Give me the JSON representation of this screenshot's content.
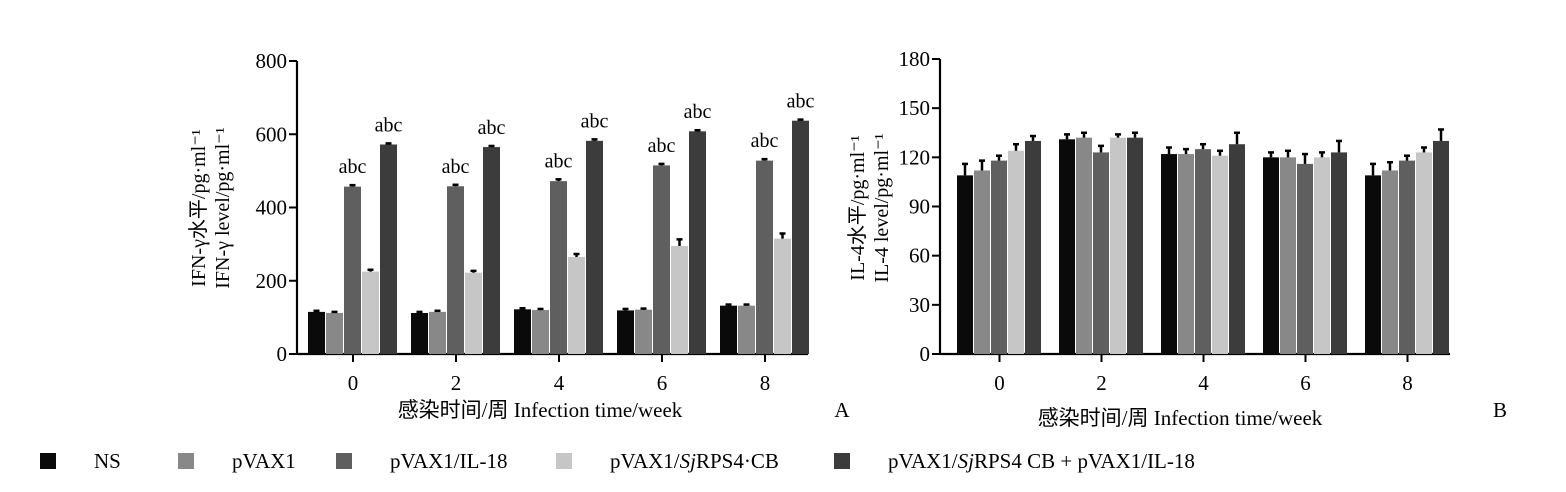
{
  "chart_data": [
    {
      "id": "A",
      "type": "bar",
      "panel_label": "A",
      "title": "",
      "ylabel_line1": "IFN-γ水平/pg·ml⁻¹",
      "ylabel_line2": "IFN-γ level/pg·ml⁻¹",
      "xlabel": "感染时间/周  Infection  time/week",
      "categories": [
        "0",
        "2",
        "4",
        "6",
        "8"
      ],
      "ylim": [
        0,
        800
      ],
      "yticks": [
        "0",
        "200",
        "400",
        "600",
        "800"
      ],
      "grid": false,
      "series": [
        {
          "values": [
            115,
            112,
            122,
            119,
            132
          ],
          "errors": [
            3,
            3,
            3,
            4,
            3
          ]
        },
        {
          "values": [
            112,
            115,
            120,
            121,
            132
          ],
          "errors": [
            3,
            3,
            3,
            3,
            3
          ]
        },
        {
          "values": [
            457,
            458,
            472,
            515,
            528
          ],
          "errors": [
            4,
            4,
            5,
            4,
            4
          ]
        },
        {
          "values": [
            225,
            222,
            265,
            295,
            315
          ],
          "errors": [
            5,
            5,
            8,
            18,
            14
          ]
        },
        {
          "values": [
            572,
            565,
            582,
            608,
            637
          ],
          "errors": [
            3,
            3,
            4,
            3,
            3
          ]
        }
      ],
      "annotations": [
        {
          "category": "0",
          "series": 2,
          "text": "abc"
        },
        {
          "category": "0",
          "series": 4,
          "text": "abc"
        },
        {
          "category": "2",
          "series": 2,
          "text": "abc"
        },
        {
          "category": "2",
          "series": 4,
          "text": "abc"
        },
        {
          "category": "4",
          "series": 2,
          "text": "abc"
        },
        {
          "category": "4",
          "series": 4,
          "text": "abc"
        },
        {
          "category": "6",
          "series": 2,
          "text": "abc"
        },
        {
          "category": "6",
          "series": 4,
          "text": "abc"
        },
        {
          "category": "8",
          "series": 2,
          "text": "abc"
        },
        {
          "category": "8",
          "series": 4,
          "text": "abc"
        }
      ]
    },
    {
      "id": "B",
      "type": "bar",
      "panel_label": "B",
      "title": "",
      "ylabel_line1": "IL-4水平/pg·ml⁻¹",
      "ylabel_line2": "IL-4  level/pg·ml⁻¹",
      "xlabel": "感染时间/周  Infection  time/week",
      "categories": [
        "0",
        "2",
        "4",
        "6",
        "8"
      ],
      "ylim": [
        0,
        180
      ],
      "yticks": [
        "0",
        "30",
        "60",
        "90",
        "120",
        "150",
        "180"
      ],
      "grid": false,
      "series": [
        {
          "values": [
            109,
            131,
            122,
            120,
            109
          ],
          "errors": [
            7,
            3,
            4,
            3,
            7
          ]
        },
        {
          "values": [
            112,
            132,
            122,
            120,
            112
          ],
          "errors": [
            6,
            3,
            3,
            4,
            5
          ]
        },
        {
          "values": [
            118,
            123,
            125,
            116,
            118
          ],
          "errors": [
            3,
            4,
            3,
            6,
            3
          ]
        },
        {
          "values": [
            124,
            132,
            121,
            120,
            123
          ],
          "errors": [
            4,
            2,
            3,
            3,
            3
          ]
        },
        {
          "values": [
            130,
            132,
            128,
            123,
            130
          ],
          "errors": [
            3,
            3,
            7,
            7,
            7
          ]
        }
      ],
      "annotations": []
    }
  ],
  "legend": [
    {
      "label_pre": "NS",
      "label_italic": "",
      "label_post": "",
      "color": "#0a0a0a"
    },
    {
      "label_pre": "pVAX1",
      "label_italic": "",
      "label_post": "",
      "color": "#888888"
    },
    {
      "label_pre": "pVAX1/IL-18",
      "label_italic": "",
      "label_post": "",
      "color": "#5f5f5f"
    },
    {
      "label_pre": "pVAX1/",
      "label_italic": "Sj",
      "label_post": "RPS4·CB",
      "color": "#c6c6c6"
    },
    {
      "label_pre": "pVAX1/",
      "label_italic": "Sj",
      "label_post": "RPS4  CB + pVAX1/IL-18",
      "color": "#3c3c3c"
    }
  ]
}
